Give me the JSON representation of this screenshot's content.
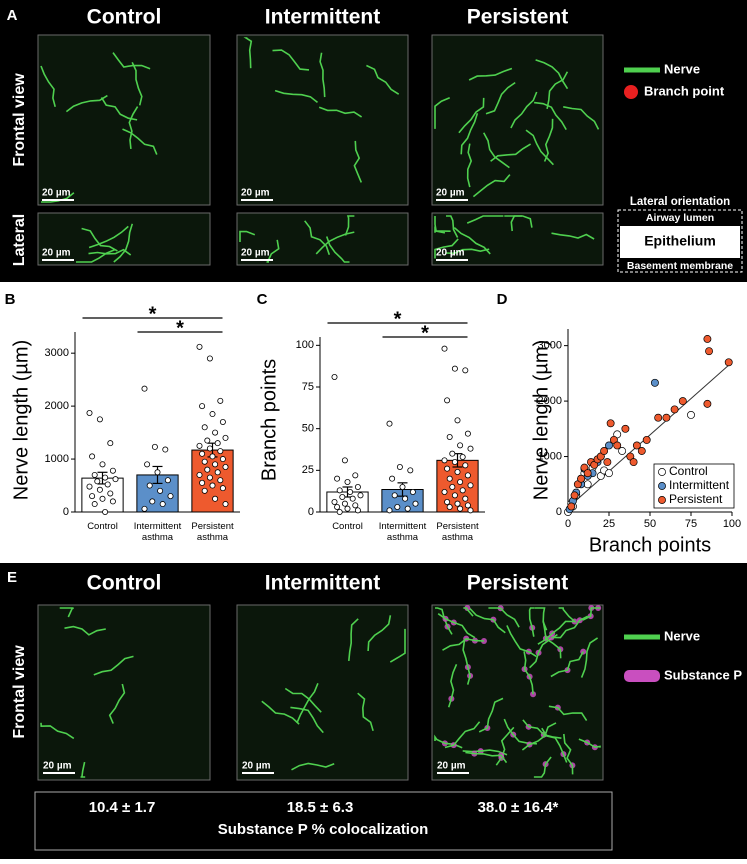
{
  "panel_a": {
    "label": "A",
    "columns": [
      "Control",
      "Intermittent",
      "Persistent"
    ],
    "rows": [
      "Frontal view",
      "Lateral"
    ],
    "scale_bar": "20 µm",
    "legend": [
      "Nerve",
      "Branch point"
    ],
    "orientation": {
      "title": "Lateral orientation",
      "top": "Airway lumen",
      "middle": "Epithelium",
      "bottom": "Basement membrane"
    }
  },
  "chart_data": [
    {
      "type": "bar",
      "label": "B",
      "ylabel": "Nerve length (µm)",
      "categories": [
        "Control",
        "Intermittent asthma",
        "Persistent asthma"
      ],
      "values": [
        640,
        700,
        1170
      ],
      "errors": [
        110,
        160,
        130
      ],
      "colors": [
        "#ffffff",
        "#5b8fc9",
        "#ee5a2e"
      ],
      "points": [
        [
          1870,
          1750,
          1300,
          1050,
          900,
          780,
          700,
          650,
          620,
          580,
          520,
          480,
          420,
          350,
          300,
          250,
          200,
          150,
          0
        ],
        [
          2330,
          1230,
          1180,
          900,
          750,
          600,
          500,
          400,
          300,
          200,
          150,
          60
        ],
        [
          3120,
          2900,
          2100,
          2000,
          1850,
          1700,
          1600,
          1500,
          1400,
          1350,
          1300,
          1250,
          1200,
          1150,
          1100,
          1050,
          1000,
          950,
          900,
          850,
          800,
          750,
          700,
          650,
          600,
          550,
          500,
          450,
          400,
          250,
          150
        ]
      ],
      "ylim": [
        0,
        3400
      ],
      "yticks": [
        0,
        1000,
        2000,
        3000
      ],
      "significance": [
        {
          "from": 0,
          "to": 2,
          "label": "*"
        },
        {
          "from": 1,
          "to": 2,
          "label": "*"
        }
      ]
    },
    {
      "type": "bar",
      "label": "C",
      "ylabel": "Branch points",
      "categories": [
        "Control",
        "Intermittent asthma",
        "Persistent asthma"
      ],
      "values": [
        12,
        13.5,
        31
      ],
      "errors": [
        3,
        4,
        4
      ],
      "colors": [
        "#ffffff",
        "#5b8fc9",
        "#ee5a2e"
      ],
      "points": [
        [
          81,
          31,
          22,
          20,
          18,
          15,
          13,
          12,
          10,
          9,
          8,
          6,
          5,
          4,
          3,
          2,
          1,
          0
        ],
        [
          53,
          27,
          25,
          20,
          15,
          12,
          10,
          8,
          5,
          3,
          2,
          1
        ],
        [
          98,
          86,
          85,
          67,
          55,
          47,
          45,
          40,
          38,
          35,
          33,
          31,
          30,
          28,
          26,
          24,
          22,
          20,
          18,
          16,
          15,
          13,
          12,
          10,
          8,
          6,
          5,
          4,
          3,
          2,
          1
        ]
      ],
      "ylim": [
        0,
        105
      ],
      "yticks": [
        0,
        25,
        50,
        75,
        100
      ],
      "significance": [
        {
          "from": 0,
          "to": 2,
          "label": "*"
        },
        {
          "from": 1,
          "to": 2,
          "label": "*"
        }
      ]
    },
    {
      "type": "scatter",
      "label": "D",
      "xlabel": "Branch points",
      "ylabel": "Nerve length (µm)",
      "xlim": [
        0,
        100
      ],
      "xticks": [
        0,
        25,
        50,
        75,
        100
      ],
      "ylim": [
        0,
        3300
      ],
      "yticks": [
        0,
        1000,
        2000,
        3000
      ],
      "legend": "lower right",
      "series": [
        {
          "name": "Control",
          "color": "#ffffff",
          "x": [
            0,
            2,
            5,
            8,
            10,
            12,
            15,
            20,
            22,
            25,
            30,
            33,
            75,
            3
          ],
          "y": [
            0,
            150,
            300,
            600,
            700,
            500,
            800,
            650,
            750,
            700,
            1400,
            1100,
            1750,
            100
          ]
        },
        {
          "name": "Intermittent",
          "color": "#5b8fc9",
          "x": [
            1,
            3,
            5,
            8,
            10,
            15,
            18,
            25,
            53,
            20,
            12
          ],
          "y": [
            50,
            200,
            350,
            500,
            780,
            700,
            900,
            1200,
            2330,
            1000,
            650
          ]
        },
        {
          "name": "Persistent",
          "color": "#ee5a2e",
          "x": [
            2,
            4,
            6,
            8,
            10,
            12,
            14,
            16,
            18,
            20,
            22,
            24,
            26,
            28,
            30,
            35,
            38,
            40,
            42,
            45,
            48,
            55,
            60,
            65,
            70,
            85,
            86,
            85,
            98
          ],
          "y": [
            100,
            300,
            500,
            600,
            800,
            700,
            900,
            850,
            950,
            1000,
            1100,
            900,
            1600,
            1300,
            1200,
            1500,
            1000,
            900,
            1200,
            1100,
            1300,
            1700,
            1700,
            1850,
            2000,
            3120,
            2900,
            1950,
            2700
          ]
        }
      ],
      "trendline": {
        "x": [
          0,
          100
        ],
        "y": [
          80,
          2700
        ]
      }
    }
  ],
  "panel_e": {
    "label": "E",
    "columns": [
      "Control",
      "Intermittent",
      "Persistent"
    ],
    "row": "Frontal view",
    "scale_bar": "20 µm",
    "legend": [
      "Nerve",
      "Substance P"
    ],
    "values": [
      "10.4 ± 1.7",
      "18.5 ± 6.3",
      "38.0 ± 16.4*"
    ],
    "caption": "Substance P % colocalization"
  }
}
